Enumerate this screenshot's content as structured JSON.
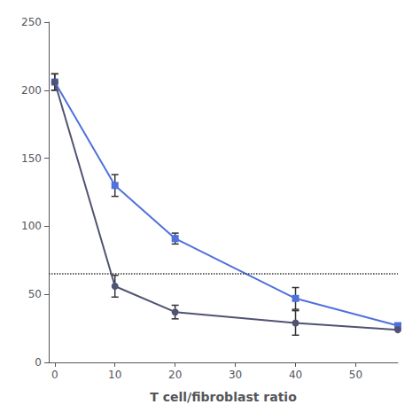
{
  "chart_data": {
    "type": "line",
    "xlabel": "T cell/fibroblast ratio",
    "x": [
      0,
      10,
      20,
      40,
      57
    ],
    "series": [
      {
        "values": [
          206,
          130,
          91,
          47,
          27
        ],
        "yerr": [
          6,
          8,
          4,
          8,
          0
        ],
        "marker": "square"
      },
      {
        "values": [
          206,
          56,
          37,
          29,
          24
        ],
        "yerr": [
          6,
          8,
          5,
          9,
          0
        ],
        "marker": "circle"
      }
    ],
    "xlim": [
      -1,
      57
    ],
    "xticks": [
      0,
      10,
      20,
      30,
      40,
      50
    ],
    "ylim": [
      0,
      250
    ],
    "yticks": [
      0,
      50,
      100,
      150,
      200,
      250
    ],
    "reference_lines": [
      {
        "y": 65,
        "line_style": "dotted"
      }
    ],
    "grid": false
  }
}
